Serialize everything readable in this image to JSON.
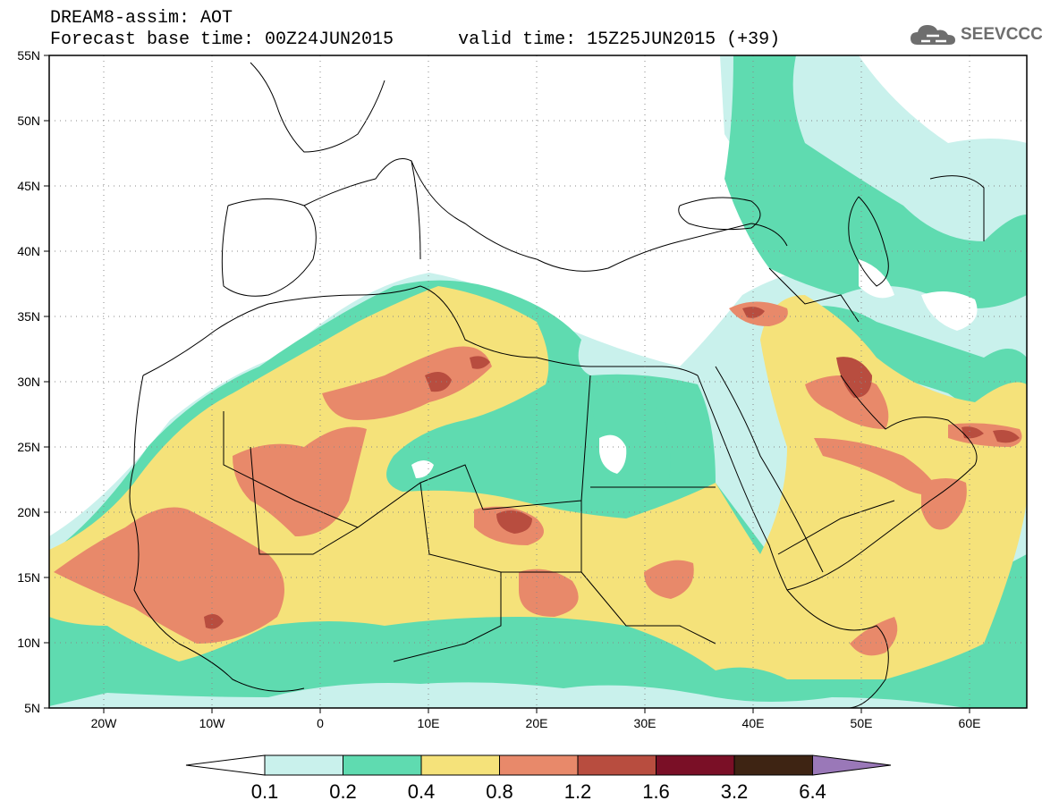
{
  "header": {
    "title": "DREAM8-assim: AOT",
    "subtitle": "Forecast base time: 00Z24JUN2015      valid time: 15Z25JUN2015 (+39)",
    "logo_text": "SEEVCCC"
  },
  "map": {
    "projection": "lat-lon",
    "lon_range": [
      -25,
      65
    ],
    "lat_range": [
      5,
      55
    ],
    "gridlines": "dotted",
    "x_ticks": [
      "20W",
      "10W",
      "0",
      "10E",
      "20E",
      "30E",
      "40E",
      "50E",
      "60E"
    ],
    "y_ticks": [
      "55N",
      "50N",
      "45N",
      "40N",
      "35N",
      "30N",
      "25N",
      "20N",
      "15N",
      "10N",
      "5N"
    ]
  },
  "colorbar": {
    "labels": [
      "0.1",
      "0.2",
      "0.4",
      "0.8",
      "1.2",
      "1.6",
      "3.2",
      "6.4"
    ],
    "colors": [
      "#ffffff",
      "#c9f1ec",
      "#5fdbb0",
      "#f5e27a",
      "#e8896a",
      "#b84d3f",
      "#7a0f26",
      "#3e2413",
      "#9a78b8"
    ]
  }
}
